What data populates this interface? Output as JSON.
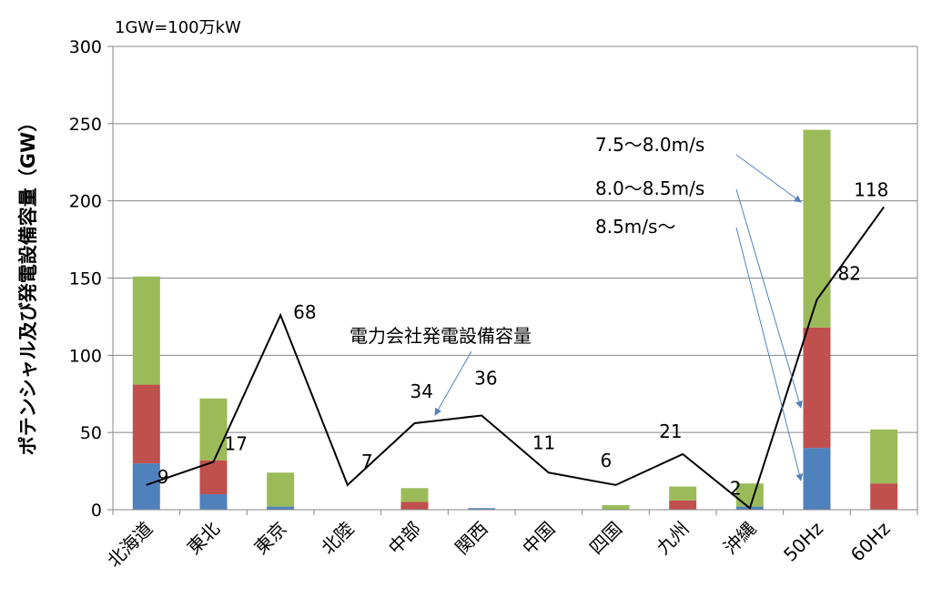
{
  "chart_data": {
    "type": "bar",
    "subtype": "stacked bar with line overlay",
    "unit_note": "1GW=100万kW",
    "ylabel": "ポテンシャル及び発電設備容量（GW）",
    "ylim": [
      0,
      300
    ],
    "yticks": [
      "0",
      "50",
      "100",
      "150",
      "200",
      "250",
      "300"
    ],
    "categories": [
      "北海道",
      "東北",
      "東京",
      "北陸",
      "中部",
      "関西",
      "中国",
      "四国",
      "九州",
      "沖縄",
      "50Hz",
      "60Hz"
    ],
    "series": [
      {
        "name": "8.5m/s〜",
        "color": "#4f81bd",
        "values": [
          30,
          10,
          2,
          0,
          0,
          1,
          0,
          0,
          0,
          2,
          40,
          0
        ]
      },
      {
        "name": "8.0〜8.5m/s",
        "color": "#c0504d",
        "values": [
          51,
          22,
          0,
          0,
          5,
          0,
          0,
          0,
          6,
          0,
          78,
          17
        ]
      },
      {
        "name": "7.5〜8.0m/s",
        "color": "#9bbb59",
        "values": [
          70,
          40,
          22,
          0,
          9,
          0,
          0,
          3,
          9,
          15,
          128,
          35
        ]
      }
    ],
    "line": {
      "name": "電力会社発電設備容量",
      "color": "#000000",
      "values": [
        16,
        31,
        126,
        16,
        56,
        61,
        24,
        16,
        36,
        1,
        136,
        196
      ],
      "labels": [
        "9",
        "17",
        "68",
        "7",
        "34",
        "36",
        "11",
        "6",
        "21",
        "2",
        "82",
        "118"
      ]
    },
    "grid": "horizontal",
    "legend": "callout annotations with arrows"
  }
}
